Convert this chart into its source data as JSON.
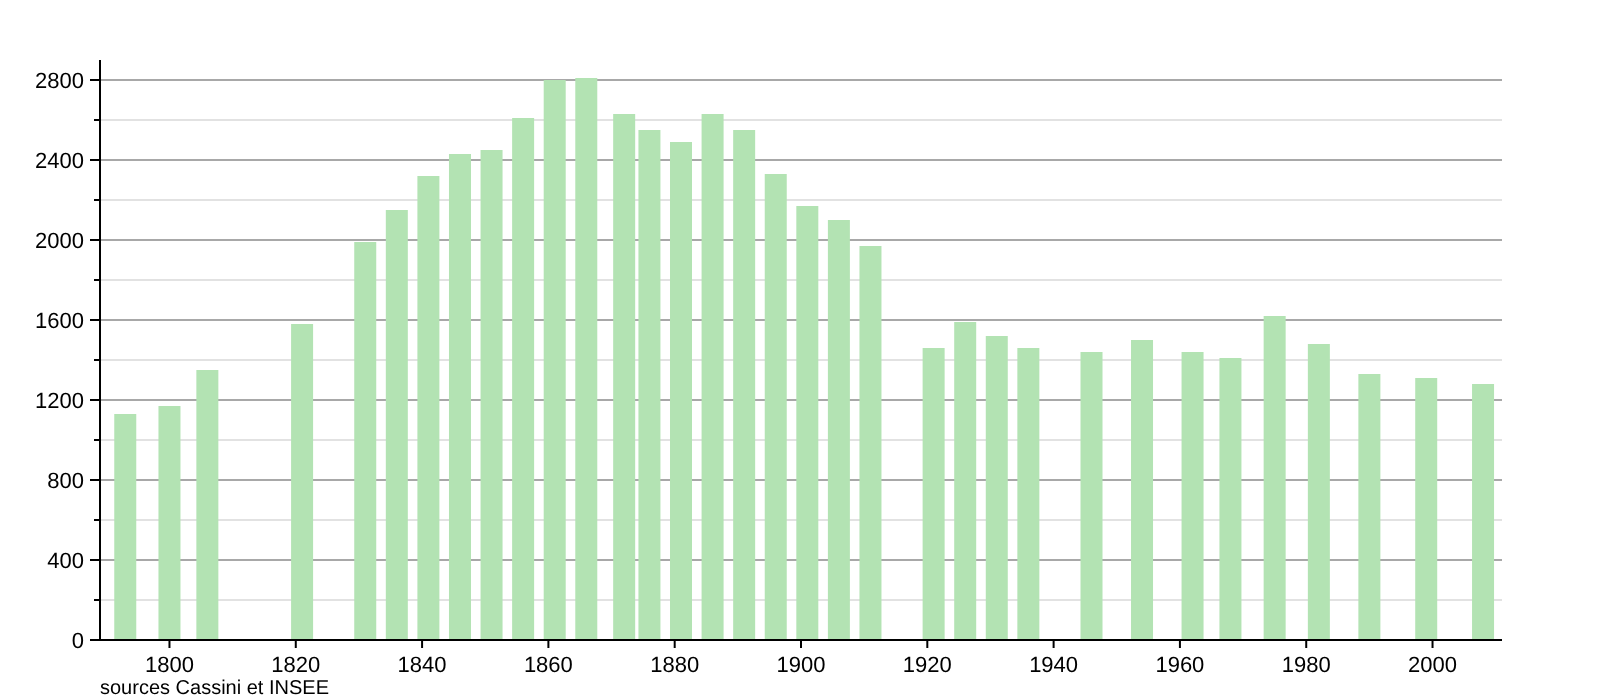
{
  "chart_data": {
    "type": "bar",
    "x": [
      1793,
      1800,
      1806,
      1821,
      1831,
      1836,
      1841,
      1846,
      1851,
      1856,
      1861,
      1866,
      1872,
      1876,
      1881,
      1886,
      1891,
      1896,
      1901,
      1906,
      1911,
      1921,
      1926,
      1931,
      1936,
      1946,
      1954,
      1962,
      1968,
      1975,
      1982,
      1990,
      1999,
      2008
    ],
    "values": [
      1130,
      1170,
      1350,
      1580,
      1990,
      2150,
      2320,
      2430,
      2450,
      2610,
      2800,
      2810,
      2630,
      2550,
      2490,
      2630,
      2550,
      2330,
      2170,
      2100,
      1970,
      1460,
      1590,
      1520,
      1460,
      1440,
      1500,
      1440,
      1410,
      1620,
      1480,
      1330,
      1310,
      1280
    ],
    "color": "#b3e3b3",
    "xlim": [
      1789,
      2011
    ],
    "xticks": [
      1800,
      1820,
      1840,
      1860,
      1880,
      1900,
      1920,
      1940,
      1960,
      1980,
      2000
    ],
    "ylim": [
      0,
      2900
    ],
    "yticks": [
      0,
      {
        "value": 200,
        "label": null
      },
      400,
      {
        "value": 600,
        "label": null
      },
      800,
      {
        "value": 1000,
        "label": null
      },
      1200,
      {
        "value": 1400,
        "label": null
      },
      1600,
      {
        "value": 1800,
        "label": null
      },
      2000,
      {
        "value": 2200,
        "label": null
      },
      2400,
      {
        "value": 2600,
        "label": null
      },
      2800
    ],
    "grid": "y",
    "annotations": [
      "sources Cassini et INSEE"
    ]
  }
}
